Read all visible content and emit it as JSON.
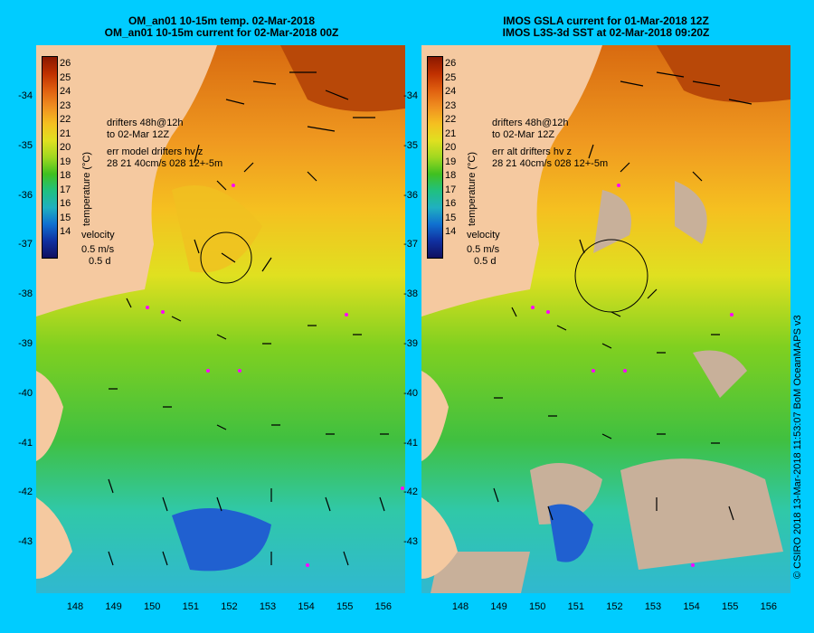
{
  "left_panel": {
    "title_line1": "OM_an01 10-15m temp. 02-Mar-2018",
    "title_line2": "OM_an01 10-15m current for 02-Mar-2018 00Z",
    "drifter_note": "drifters 48h@12h",
    "drifter_note2": "to 02-Mar 12Z",
    "err_note1": "err model drifters hv z",
    "err_note2": "28 21 40cm/s 028 12+-5m",
    "velocity_label": "velocity",
    "velocity_value": "0.5 m/s",
    "velocity_days": "0.5 d"
  },
  "right_panel": {
    "title_line1": "IMOS GSLA current for 01-Mar-2018 12Z",
    "title_line2": "IMOS L3S-3d SST at 02-Mar-2018 09:20Z",
    "drifter_note": "drifters 48h@12h",
    "drifter_note2": "to 02-Mar 12Z",
    "err_note1": "err alt drifters hv z",
    "err_note2": "28 21 40cm/s 028 12+-5m",
    "velocity_label": "velocity",
    "velocity_value": "0.5 m/s",
    "velocity_days": "0.5 d"
  },
  "colorbar": {
    "title": "temperature (°C)",
    "ticks": [
      "26",
      "25",
      "24",
      "23",
      "22",
      "21",
      "20",
      "19",
      "18",
      "17",
      "16",
      "15",
      "14"
    ]
  },
  "y_axis_labels": [
    "-34",
    "-35",
    "-36",
    "-37",
    "-38",
    "-39",
    "-40",
    "-41",
    "-42",
    "-43"
  ],
  "x_axis_labels": [
    "148",
    "149",
    "150",
    "151",
    "152",
    "153",
    "154",
    "155",
    "156"
  ],
  "credit": "© CSIRO 2018   13-Mar-2018 11:53:07 BoM OceanMAPS v3",
  "colors": {
    "background": "#00ccff",
    "land": "#f5c9a0",
    "warm": "#e07a10",
    "mid": "#8ad020",
    "cool": "#40c8a0",
    "cold": "#2060d0",
    "cloud": "#c8b09a"
  }
}
